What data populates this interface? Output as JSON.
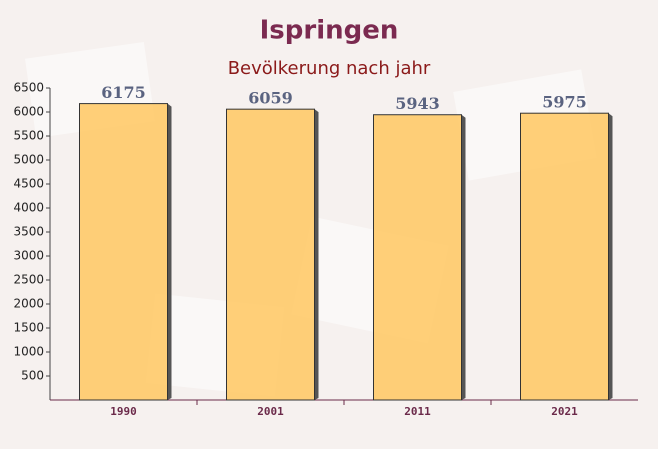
{
  "chart_data": {
    "type": "bar",
    "title": "Ispringen",
    "subtitle": "Bevölkerung nach jahr",
    "categories": [
      "1990",
      "2001",
      "2011",
      "2021"
    ],
    "values": [
      6175,
      6059,
      5943,
      5975
    ],
    "color": "#ffc862",
    "ylim": [
      0,
      6500
    ],
    "yticks": [
      500,
      1000,
      1500,
      2000,
      2500,
      3000,
      3500,
      4000,
      4500,
      5000,
      5500,
      6000,
      6500
    ]
  }
}
